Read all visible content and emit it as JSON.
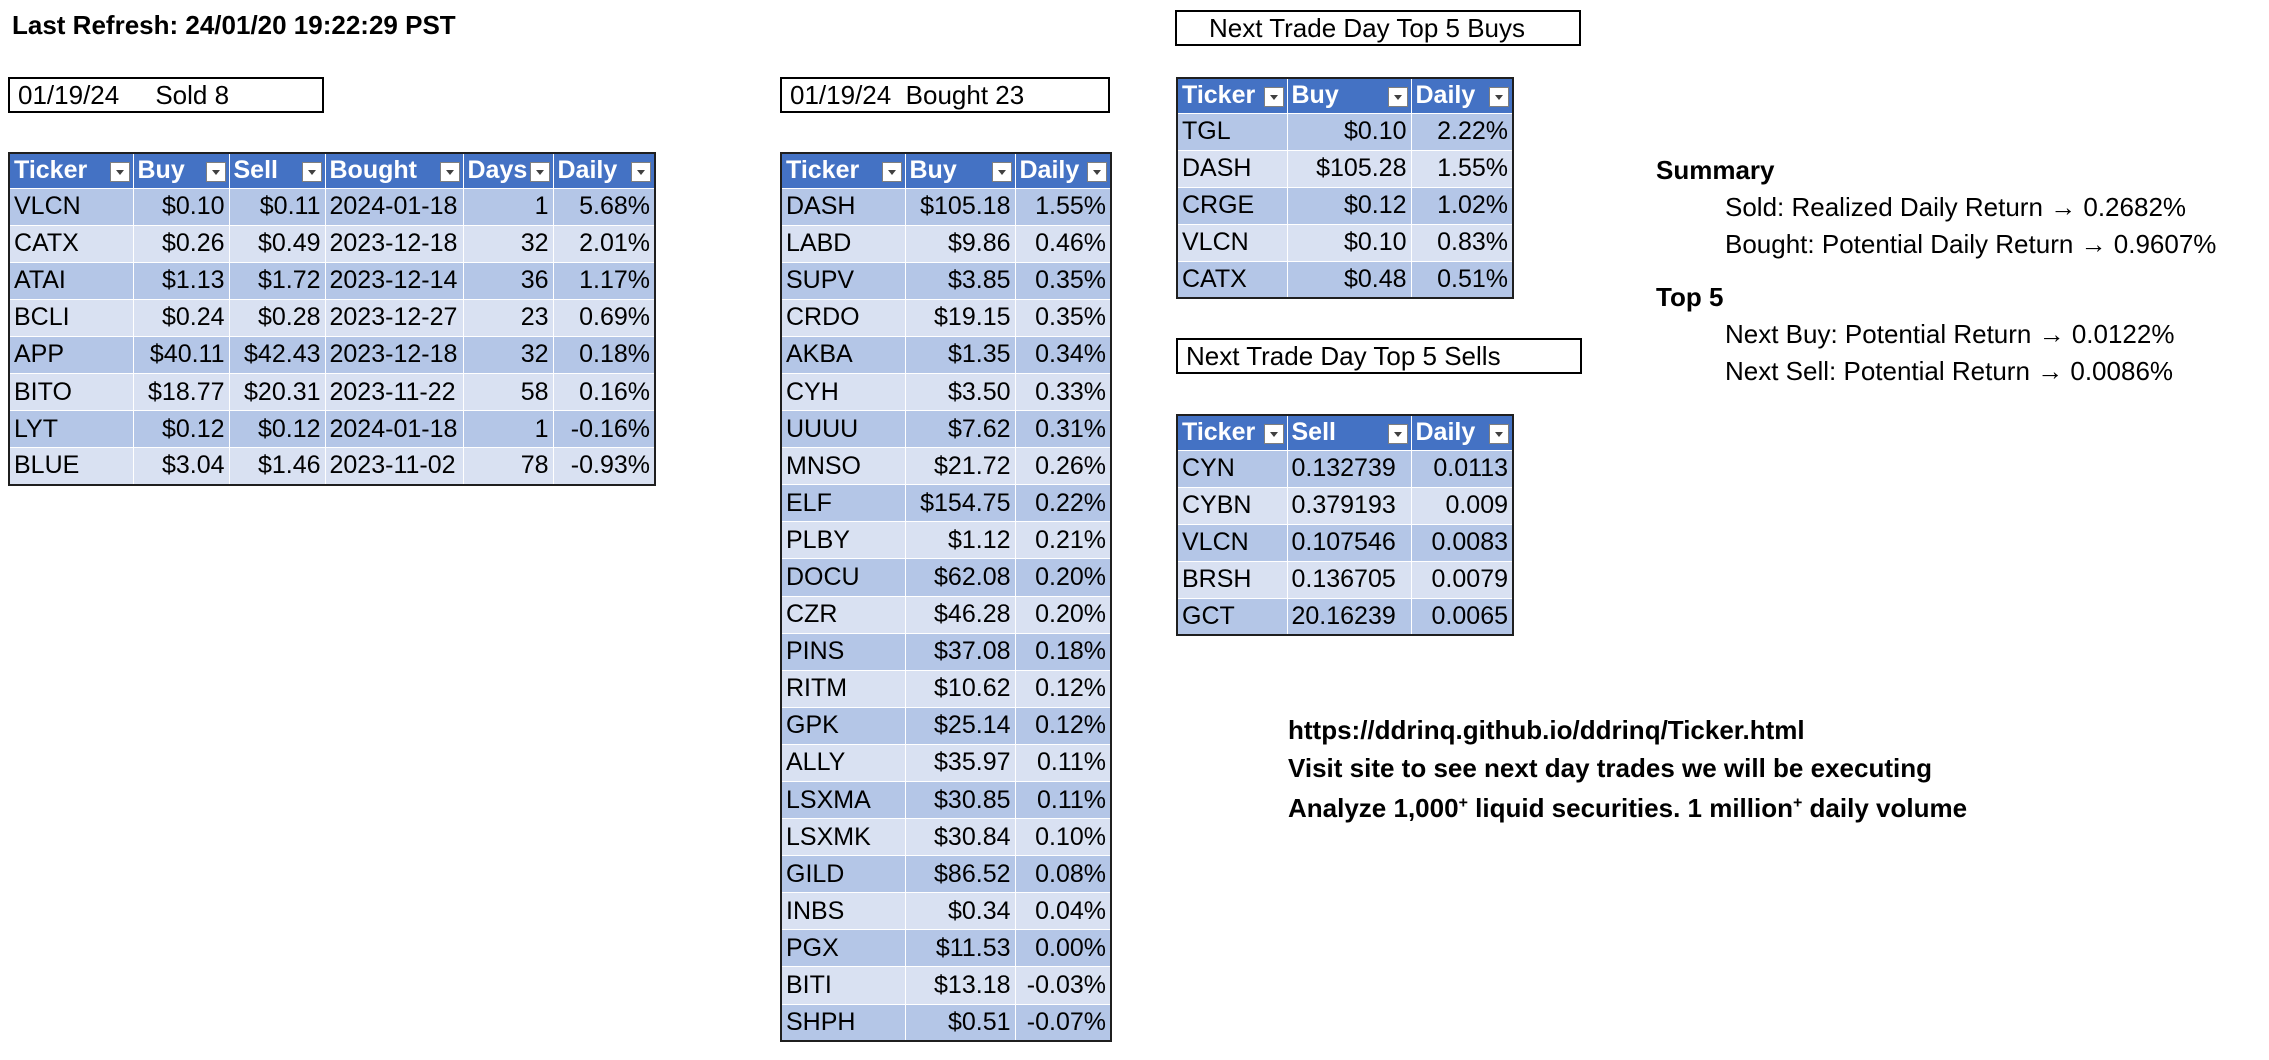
{
  "refresh": "Last Refresh: 24/01/20 19:22:29 PST",
  "sold": {
    "label": "01/19/24     Sold 8",
    "headers": [
      "Ticker",
      "Buy",
      "Sell",
      "Bought",
      "Days",
      "Daily"
    ],
    "rows": [
      [
        "VLCN",
        "$0.10",
        "$0.11",
        "2024-01-18",
        "1",
        "5.68%"
      ],
      [
        "CATX",
        "$0.26",
        "$0.49",
        "2023-12-18",
        "32",
        "2.01%"
      ],
      [
        "ATAI",
        "$1.13",
        "$1.72",
        "2023-12-14",
        "36",
        "1.17%"
      ],
      [
        "BCLI",
        "$0.24",
        "$0.28",
        "2023-12-27",
        "23",
        "0.69%"
      ],
      [
        "APP",
        "$40.11",
        "$42.43",
        "2023-12-18",
        "32",
        "0.18%"
      ],
      [
        "BITO",
        "$18.77",
        "$20.31",
        "2023-11-22",
        "58",
        "0.16%"
      ],
      [
        "LYT",
        "$0.12",
        "$0.12",
        "2024-01-18",
        "1",
        "-0.16%"
      ],
      [
        "BLUE",
        "$3.04",
        "$1.46",
        "2023-11-02",
        "78",
        "-0.93%"
      ]
    ]
  },
  "bought": {
    "label": "01/19/24  Bought 23",
    "headers": [
      "Ticker",
      "Buy",
      "Daily"
    ],
    "rows": [
      [
        "DASH",
        "$105.18",
        "1.55%"
      ],
      [
        "LABD",
        "$9.86",
        "0.46%"
      ],
      [
        "SUPV",
        "$3.85",
        "0.35%"
      ],
      [
        "CRDO",
        "$19.15",
        "0.35%"
      ],
      [
        "AKBA",
        "$1.35",
        "0.34%"
      ],
      [
        "CYH",
        "$3.50",
        "0.33%"
      ],
      [
        "UUUU",
        "$7.62",
        "0.31%"
      ],
      [
        "MNSO",
        "$21.72",
        "0.26%"
      ],
      [
        "ELF",
        "$154.75",
        "0.22%"
      ],
      [
        "PLBY",
        "$1.12",
        "0.21%"
      ],
      [
        "DOCU",
        "$62.08",
        "0.20%"
      ],
      [
        "CZR",
        "$46.28",
        "0.20%"
      ],
      [
        "PINS",
        "$37.08",
        "0.18%"
      ],
      [
        "RITM",
        "$10.62",
        "0.12%"
      ],
      [
        "GPK",
        "$25.14",
        "0.12%"
      ],
      [
        "ALLY",
        "$35.97",
        "0.11%"
      ],
      [
        "LSXMA",
        "$30.85",
        "0.11%"
      ],
      [
        "LSXMK",
        "$30.84",
        "0.10%"
      ],
      [
        "GILD",
        "$86.52",
        "0.08%"
      ],
      [
        "INBS",
        "$0.34",
        "0.04%"
      ],
      [
        "PGX",
        "$11.53",
        "0.00%"
      ],
      [
        "BITI",
        "$13.18",
        "-0.03%"
      ],
      [
        "SHPH",
        "$0.51",
        "-0.07%"
      ]
    ]
  },
  "top_buys": {
    "label": "Next Trade Day Top 5 Buys",
    "headers": [
      "Ticker",
      "Buy",
      "Daily"
    ],
    "rows": [
      [
        "TGL",
        "$0.10",
        "2.22%"
      ],
      [
        "DASH",
        "$105.28",
        "1.55%"
      ],
      [
        "CRGE",
        "$0.12",
        "1.02%"
      ],
      [
        "VLCN",
        "$0.10",
        "0.83%"
      ],
      [
        "CATX",
        "$0.48",
        "0.51%"
      ]
    ]
  },
  "top_sells": {
    "label": "Next Trade Day Top 5 Sells",
    "headers": [
      "Ticker",
      "Sell",
      "Daily"
    ],
    "rows": [
      [
        "CYN",
        "0.132739",
        "0.0113"
      ],
      [
        "CYBN",
        "0.379193",
        "0.009"
      ],
      [
        "VLCN",
        "0.107546",
        "0.0083"
      ],
      [
        "BRSH",
        "0.136705",
        "0.0079"
      ],
      [
        "GCT",
        "20.16239",
        "0.0065"
      ]
    ]
  },
  "summary": {
    "title": "Summary",
    "sold": "Sold: Realized Daily Return → 0.2682%",
    "bought": "Bought: Potential Daily Return → 0.9607%",
    "top5_title": "Top 5",
    "next_buy": "Next Buy: Potential Return → 0.0122%",
    "next_sell": "Next Sell: Potential Return → 0.0086%"
  },
  "promo": {
    "url": "https://ddrinq.github.io/ddrinq/Ticker.html",
    "visit": "Visit site to see next day trades we will be executing",
    "analyze_a": "Analyze 1,000",
    "sup": "+",
    "analyze_b": " liquid securities.  1 million",
    "analyze_c": " daily volume"
  }
}
